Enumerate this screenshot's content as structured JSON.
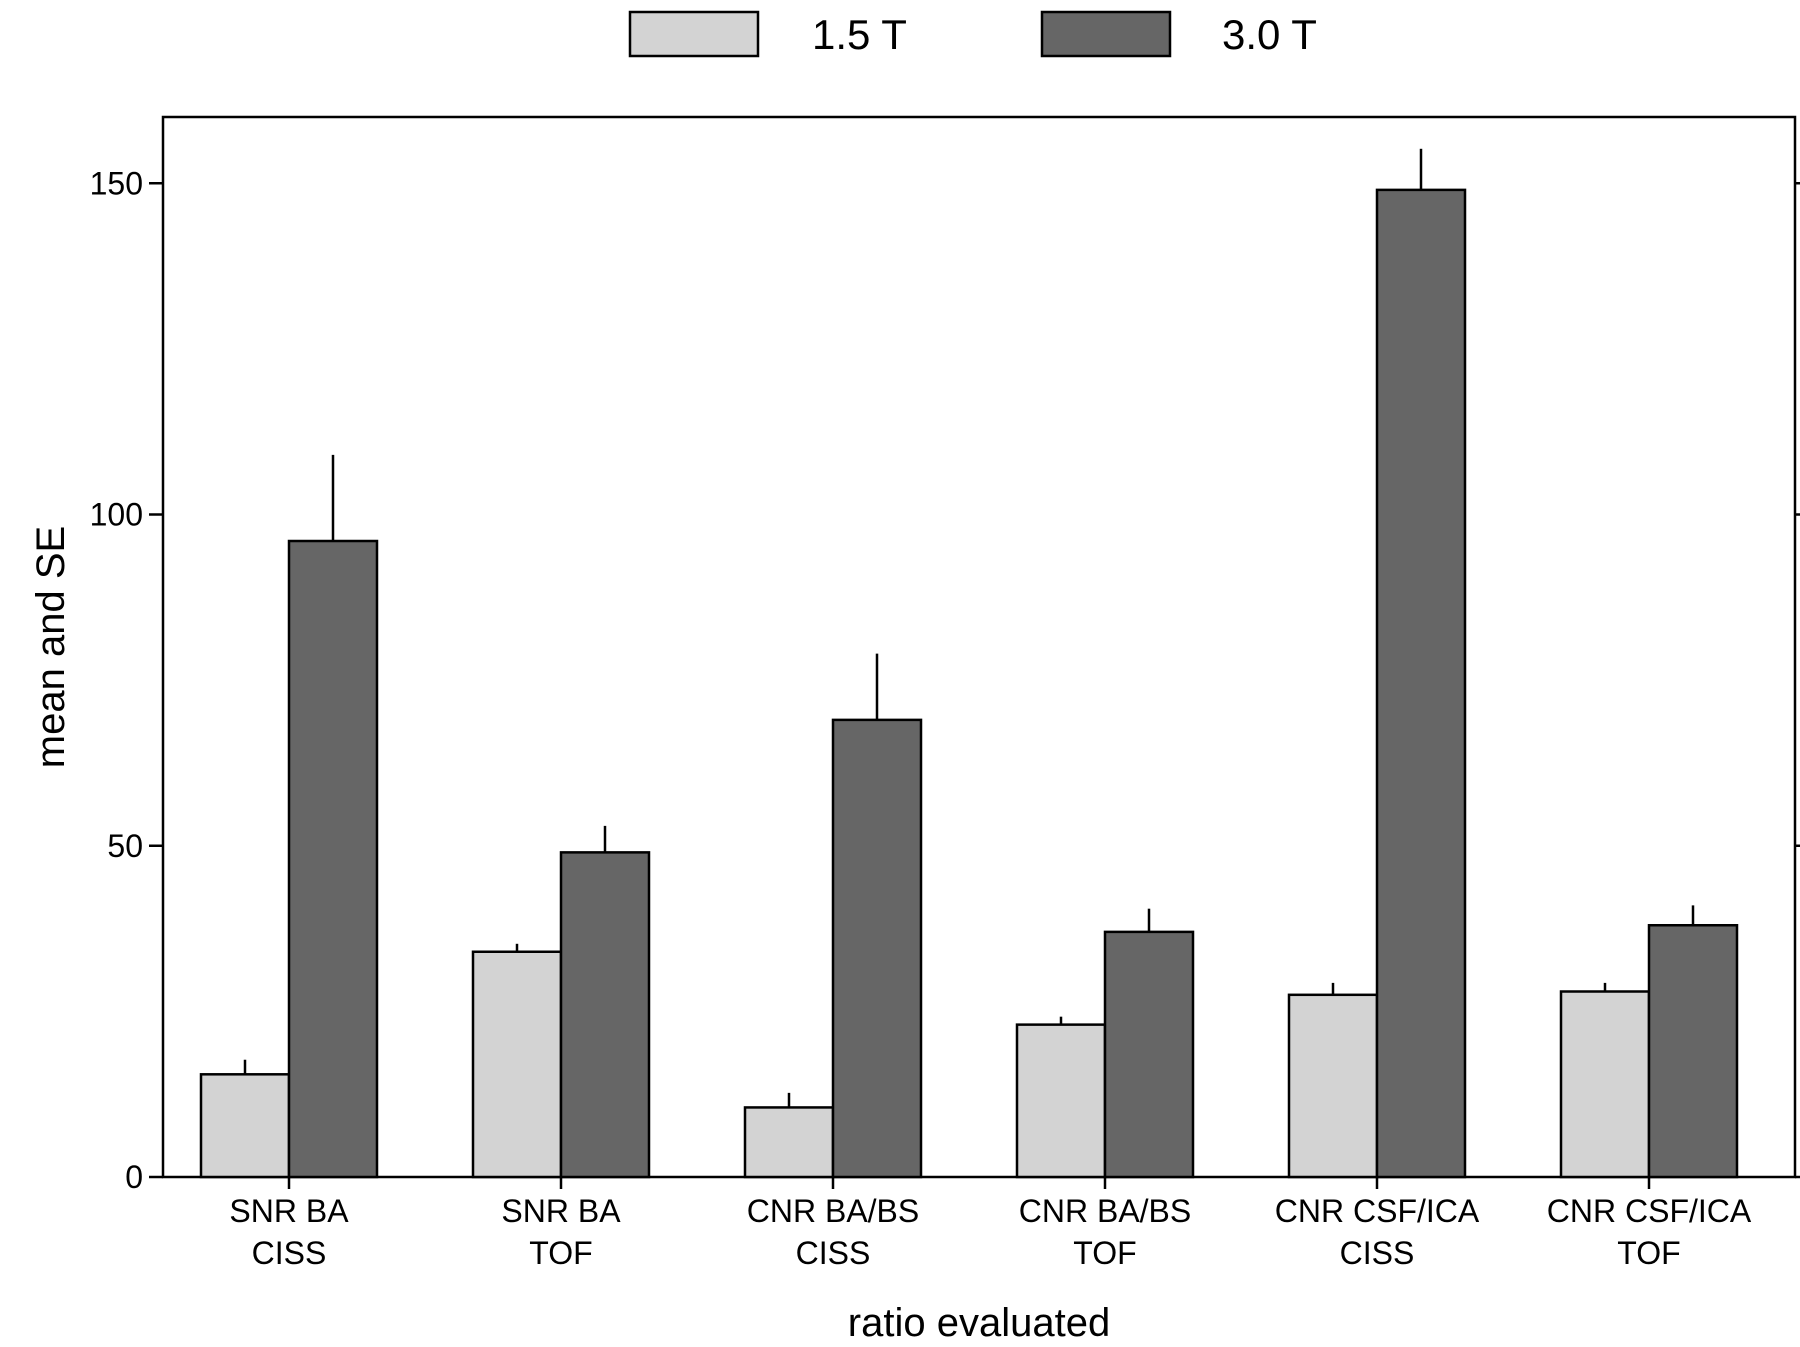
{
  "chart_data": {
    "type": "bar",
    "title": "",
    "xlabel": "ratio evaluated",
    "ylabel": "mean and SE",
    "ylim": [
      0,
      160
    ],
    "yticks": [
      0,
      50,
      100,
      150
    ],
    "grid": false,
    "legend_position": "top",
    "categories": [
      [
        "SNR BA",
        "CISS"
      ],
      [
        "SNR BA",
        "TOF"
      ],
      [
        "CNR BA/BS",
        "CISS"
      ],
      [
        "CNR BA/BS",
        "TOF"
      ],
      [
        "CNR CSF/ICA",
        "CISS"
      ],
      [
        "CNR CSF/ICA",
        "TOF"
      ]
    ],
    "series": [
      {
        "name": "1.5 T",
        "color": "#d3d3d3",
        "values": [
          15.5,
          34,
          10.5,
          23,
          27.5,
          28
        ],
        "se": [
          2.2,
          1.2,
          2.2,
          1.2,
          1.8,
          1.3
        ]
      },
      {
        "name": "3.0 T",
        "color": "#666666",
        "values": [
          96,
          49,
          69,
          37,
          149,
          38
        ],
        "se": [
          13,
          4,
          10,
          3.5,
          6.2,
          3
        ]
      }
    ]
  }
}
